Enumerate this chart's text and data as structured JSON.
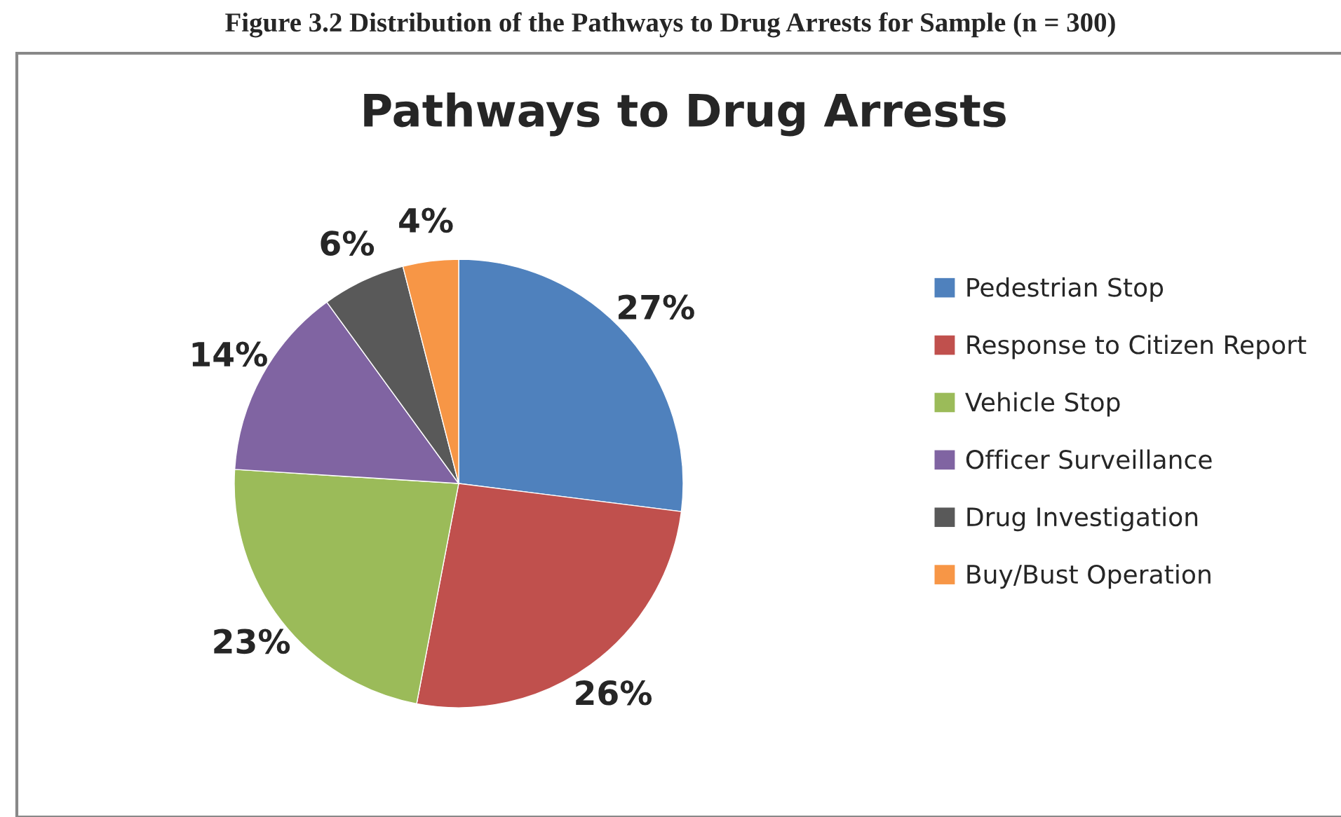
{
  "chart_data": {
    "type": "pie",
    "title": "Pathways to Drug Arrests",
    "annotations": [
      "Figure 3.2 Distribution of the Pathways to Drug Arrests for Sample (n = 300)"
    ],
    "categories": [
      "Pedestrian Stop",
      "Response to Citizen Report",
      "Vehicle Stop",
      "Officer Surveillance",
      "Drug Investigation",
      "Buy/Bust Operation"
    ],
    "values": [
      27,
      26,
      23,
      14,
      6,
      4
    ],
    "colors": [
      "#4f81bd",
      "#c0504d",
      "#9bbb59",
      "#8064a2",
      "#595959",
      "#f79646"
    ],
    "value_labels": [
      "27%",
      "26%",
      "23%",
      "14%",
      "6%",
      "4%"
    ],
    "legend": "right"
  }
}
